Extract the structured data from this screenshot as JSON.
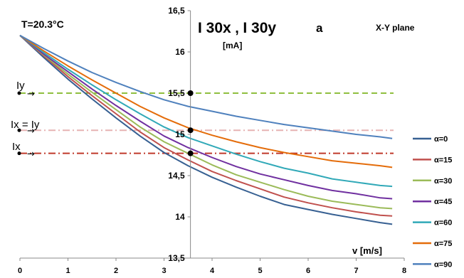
{
  "annotations": {
    "temperature": "T=20.3°C",
    "panel": "a",
    "plane": "X-Y  plane",
    "title_I30x": "I 30x",
    "title_sep": " , ",
    "title_I30y": "I 30y",
    "title_unit": "[mA]",
    "Iy": "Iy",
    "Ix_eq_Iy": "Ix = Iy",
    "Ix": "Ix",
    "arrow": "→"
  },
  "chart_data": {
    "type": "line",
    "xlabel": "v [m/s]",
    "ylabel": "I 30x , I 30y [mA]",
    "xlim": [
      0,
      8
    ],
    "ylim": [
      13.5,
      16.5
    ],
    "x_ticks": [
      "0",
      "1",
      "2",
      "3",
      "4",
      "5",
      "6",
      "7",
      "8"
    ],
    "y_ticks": [
      "13,5",
      "14",
      "14,5",
      "15",
      "15,5",
      "16",
      "16,5"
    ],
    "grid": false,
    "legend_position": "right",
    "x": [
      0,
      0.5,
      1,
      1.5,
      2,
      2.5,
      3,
      3.5,
      4,
      4.5,
      5,
      5.5,
      6,
      6.5,
      7,
      7.5,
      7.75
    ],
    "series": [
      {
        "name": "α=0",
        "color": "#376092",
        "values": [
          16.2,
          15.93,
          15.67,
          15.43,
          15.2,
          14.98,
          14.78,
          14.62,
          14.48,
          14.36,
          14.25,
          14.15,
          14.09,
          14.03,
          13.98,
          13.93,
          13.91
        ]
      },
      {
        "name": "α=15",
        "color": "#c0504d",
        "values": [
          16.2,
          15.95,
          15.7,
          15.47,
          15.25,
          15.03,
          14.84,
          14.69,
          14.55,
          14.44,
          14.34,
          14.24,
          14.17,
          14.11,
          14.06,
          14.02,
          14.01
        ]
      },
      {
        "name": "α=30",
        "color": "#9bbb59",
        "values": [
          16.2,
          15.96,
          15.73,
          15.51,
          15.3,
          15.09,
          14.91,
          14.77,
          14.63,
          14.51,
          14.42,
          14.33,
          14.25,
          14.19,
          14.15,
          14.11,
          14.1
        ]
      },
      {
        "name": "α=45",
        "color": "#7030a0",
        "values": [
          16.2,
          15.97,
          15.76,
          15.55,
          15.35,
          15.16,
          14.98,
          14.84,
          14.72,
          14.61,
          14.52,
          14.45,
          14.38,
          14.32,
          14.28,
          14.23,
          14.22
        ]
      },
      {
        "name": "α=60",
        "color": "#31a9b8",
        "values": [
          16.2,
          15.99,
          15.79,
          15.6,
          15.42,
          15.25,
          15.09,
          14.96,
          14.86,
          14.76,
          14.67,
          14.59,
          14.53,
          14.46,
          14.42,
          14.38,
          14.37
        ]
      },
      {
        "name": "α=75",
        "color": "#e46c0a",
        "values": [
          16.2,
          16.01,
          15.83,
          15.66,
          15.5,
          15.34,
          15.2,
          15.08,
          14.99,
          14.91,
          14.84,
          14.78,
          14.73,
          14.68,
          14.65,
          14.62,
          14.6
        ]
      },
      {
        "name": "α=90",
        "color": "#4f81bd",
        "values": [
          16.2,
          16.04,
          15.89,
          15.75,
          15.63,
          15.52,
          15.42,
          15.34,
          15.28,
          15.22,
          15.17,
          15.12,
          15.08,
          15.04,
          15.0,
          14.97,
          14.95
        ]
      }
    ],
    "reference_lines": [
      {
        "label": "Iy",
        "value": 15.5,
        "color": "#8fbf3f",
        "style": "dashed"
      },
      {
        "label": "Ix = Iy",
        "value": 15.05,
        "color": "#e6b3b3",
        "style": "dashdot"
      },
      {
        "label": "Ix",
        "value": 14.77,
        "color": "#c0392b",
        "style": "dashdot"
      }
    ],
    "marker_x": 3.55,
    "marker_points": [
      15.5,
      15.05,
      14.77
    ]
  }
}
